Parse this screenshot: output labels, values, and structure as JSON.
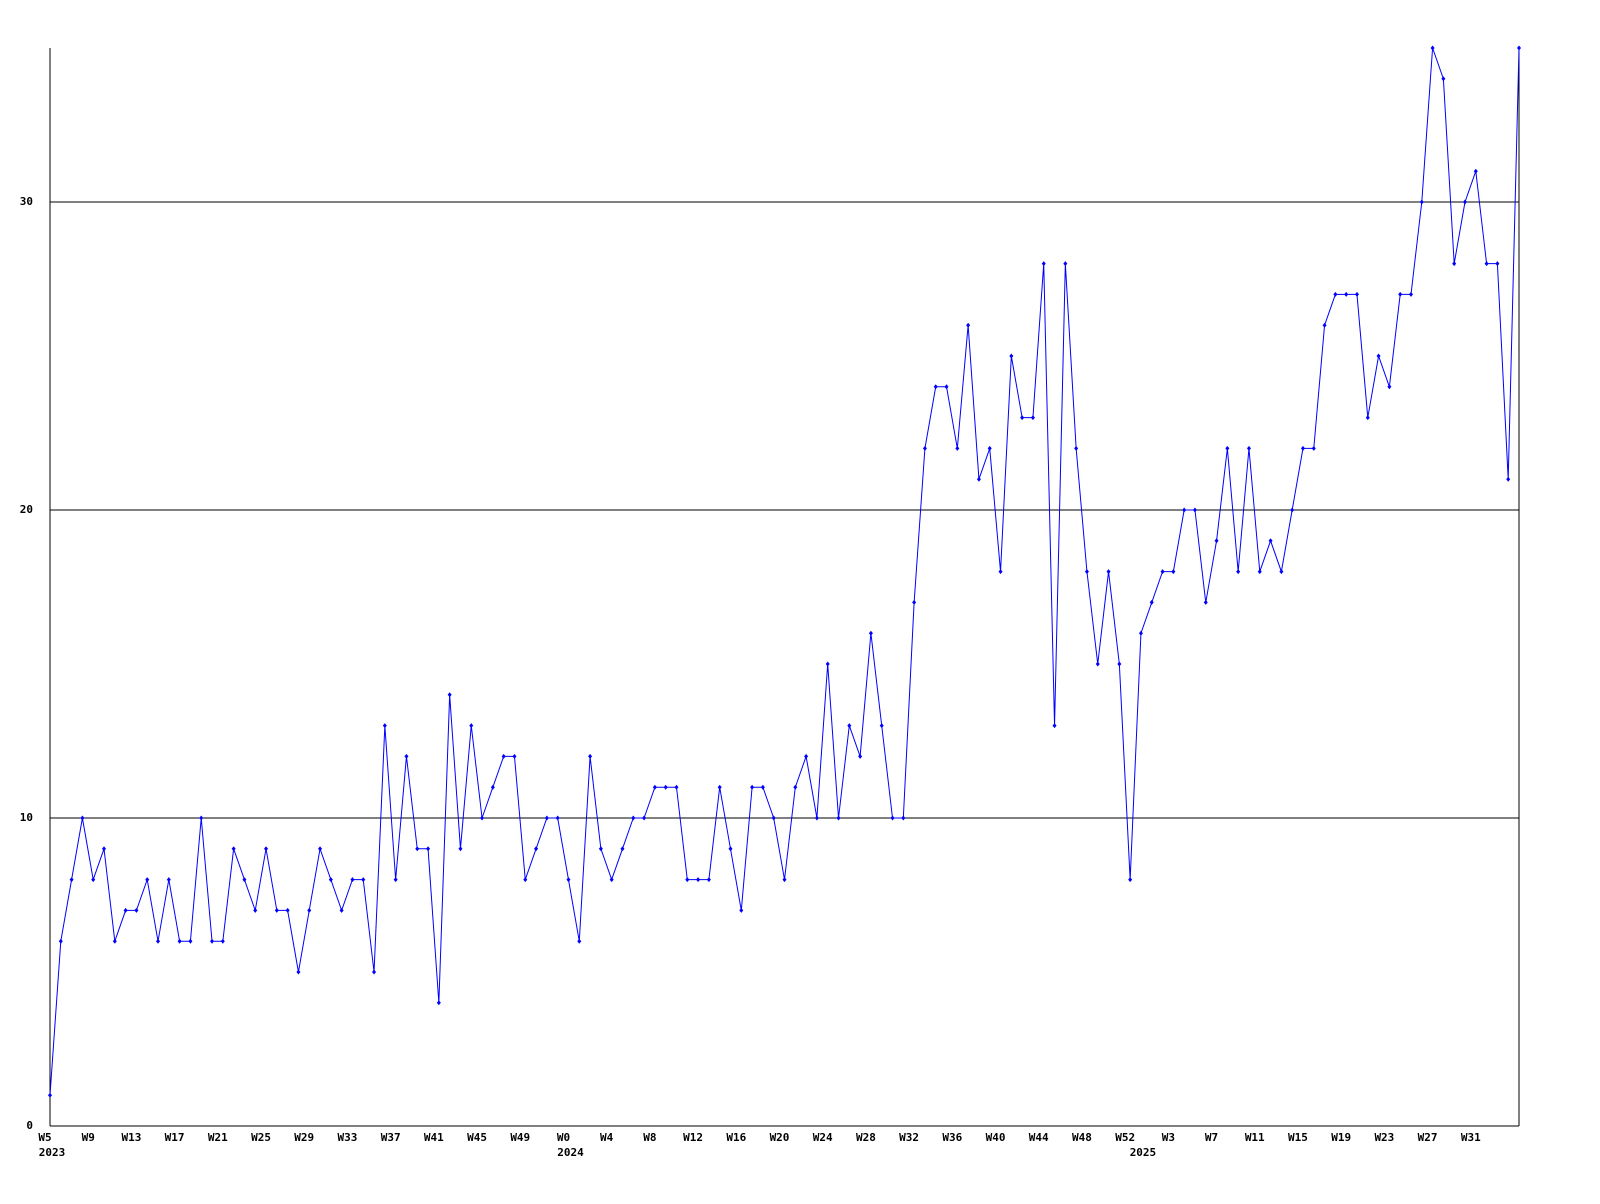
{
  "chart_data": {
    "type": "line",
    "color": "#0000ff",
    "categories": [
      "W5",
      null,
      null,
      null,
      "W9",
      null,
      null,
      null,
      "W13",
      null,
      null,
      null,
      "W17",
      null,
      null,
      null,
      "W21",
      null,
      null,
      null,
      "W25",
      null,
      null,
      null,
      "W29",
      null,
      null,
      null,
      "W33",
      null,
      null,
      null,
      "W37",
      null,
      null,
      null,
      "W41",
      null,
      null,
      null,
      "W45",
      null,
      null,
      null,
      "W49",
      null,
      null,
      null,
      "W0",
      null,
      null,
      null,
      "W4",
      null,
      null,
      null,
      "W8",
      null,
      null,
      null,
      "W12",
      null,
      null,
      null,
      "W16",
      null,
      null,
      null,
      "W20",
      null,
      null,
      null,
      "W24",
      null,
      null,
      null,
      "W28",
      null,
      null,
      null,
      "W32",
      null,
      null,
      null,
      "W36",
      null,
      null,
      null,
      "W40",
      null,
      null,
      null,
      "W44",
      null,
      null,
      null,
      "W48",
      null,
      null,
      null,
      "W52",
      null,
      null,
      null,
      "W3",
      null,
      null,
      null,
      "W7",
      null,
      null,
      null,
      "W11",
      null,
      null,
      null,
      "W15",
      null,
      null,
      null,
      "W19",
      null,
      null,
      null,
      "W23",
      null,
      null,
      null,
      "W27",
      null,
      null,
      null,
      "W31",
      null,
      null,
      null,
      null
    ],
    "category_years": [
      "2023",
      null,
      null,
      null,
      null,
      null,
      null,
      null,
      null,
      null,
      null,
      null,
      null,
      null,
      null,
      null,
      null,
      null,
      null,
      null,
      null,
      null,
      null,
      null,
      null,
      null,
      null,
      null,
      null,
      null,
      null,
      null,
      null,
      null,
      null,
      null,
      null,
      null,
      null,
      null,
      null,
      null,
      null,
      null,
      null,
      null,
      null,
      null,
      "2024",
      null,
      null,
      null,
      null,
      null,
      null,
      null,
      null,
      null,
      null,
      null,
      null,
      null,
      null,
      null,
      null,
      null,
      null,
      null,
      null,
      null,
      null,
      null,
      null,
      null,
      null,
      null,
      null,
      null,
      null,
      null,
      null,
      null,
      null,
      null,
      null,
      null,
      null,
      null,
      null,
      null,
      null,
      null,
      null,
      null,
      null,
      null,
      null,
      null,
      null,
      null,
      null,
      "2025",
      null,
      null,
      null,
      null,
      null,
      null,
      null,
      null,
      null,
      null,
      null,
      null,
      null,
      null,
      null,
      null,
      null,
      null,
      null,
      null,
      null,
      null,
      null,
      null,
      null,
      null,
      null,
      null,
      null,
      null,
      null,
      null,
      null,
      null
    ],
    "values": [
      1,
      6,
      8,
      10,
      8,
      9,
      6,
      7,
      7,
      8,
      6,
      8,
      6,
      6,
      10,
      6,
      6,
      9,
      8,
      7,
      9,
      7,
      7,
      5,
      7,
      9,
      8,
      7,
      8,
      8,
      5,
      13,
      8,
      12,
      9,
      9,
      4,
      14,
      9,
      13,
      10,
      11,
      12,
      12,
      8,
      9,
      10,
      10,
      8,
      6,
      12,
      9,
      8,
      9,
      10,
      10,
      11,
      11,
      11,
      8,
      8,
      8,
      11,
      9,
      7,
      11,
      11,
      10,
      8,
      11,
      12,
      10,
      15,
      10,
      13,
      12,
      16,
      13,
      10,
      10,
      17,
      22,
      24,
      24,
      22,
      26,
      21,
      22,
      18,
      25,
      23,
      23,
      28,
      13,
      28,
      22,
      18,
      15,
      18,
      15,
      8,
      16,
      17,
      18,
      18,
      20,
      20,
      17,
      19,
      22,
      18,
      22,
      18,
      19,
      18,
      20,
      22,
      22,
      26,
      27,
      27,
      27,
      23,
      25,
      24,
      27,
      27,
      30,
      35,
      34,
      28,
      30,
      31,
      28,
      28,
      21,
      35
    ],
    "ylim": [
      0,
      35
    ],
    "yticks": [
      0,
      10,
      20,
      30
    ],
    "grid": true
  }
}
